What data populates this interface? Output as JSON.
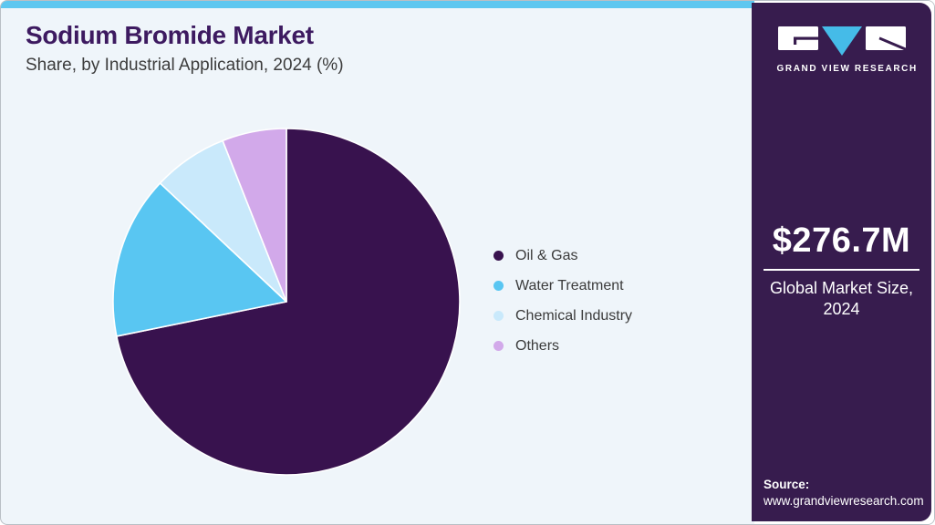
{
  "header": {
    "title": "Sodium Bromide Market",
    "subtitle": "Share, by Industrial Application, 2024 (%)"
  },
  "chart_data": {
    "type": "pie",
    "title": "Sodium Bromide Market Share, by Industrial Application, 2024 (%)",
    "unit": "%",
    "start_angle_deg": 0,
    "direction": "clockwise",
    "legend_position": "right",
    "data_labels_shown": false,
    "segments": [
      {
        "label": "Oil & Gas",
        "value": 71.8,
        "color": "#38124E"
      },
      {
        "label": "Water Treatment",
        "value": 15.2,
        "color": "#59C6F2"
      },
      {
        "label": "Chemical Industry",
        "value": 7.0,
        "color": "#C9E9FB"
      },
      {
        "label": "Others",
        "value": 6.0,
        "color": "#D2A9EA"
      }
    ]
  },
  "brand": {
    "name": "GRAND VIEW RESEARCH",
    "logo_triangle_color": "#45BBE8"
  },
  "panel": {
    "background": "#371C4E",
    "market_size_value": "$276.7M",
    "market_size_label_line1": "Global Market Size,",
    "market_size_label_line2": "2024",
    "source_label": "Source:",
    "source_url": "www.grandviewresearch.com"
  },
  "theme": {
    "top_bar_color": "#5EC7F0",
    "main_background": "#EFF5FA",
    "title_color": "#3D1A60",
    "subtitle_color": "#3C3C3C",
    "legend_text_color": "#3B3B3B",
    "slice_stroke_color": "#FFFFFF"
  }
}
